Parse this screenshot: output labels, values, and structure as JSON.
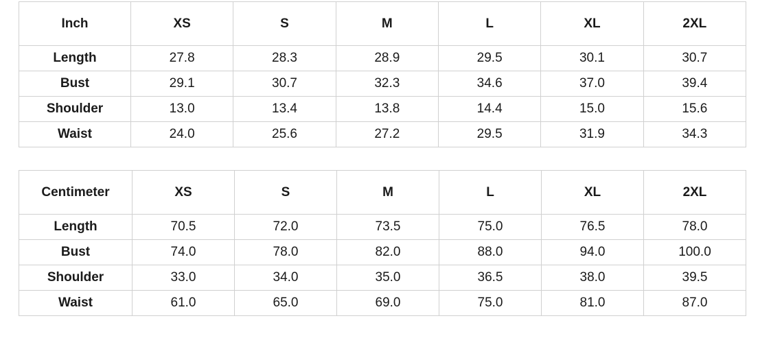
{
  "tables": [
    {
      "header": [
        "Inch",
        "XS",
        "S",
        "M",
        "L",
        "XL",
        "2XL"
      ],
      "rows": [
        [
          "Length",
          "27.8",
          "28.3",
          "28.9",
          "29.5",
          "30.1",
          "30.7"
        ],
        [
          "Bust",
          "29.1",
          "30.7",
          "32.3",
          "34.6",
          "37.0",
          "39.4"
        ],
        [
          "Shoulder",
          "13.0",
          "13.4",
          "13.8",
          "14.4",
          "15.0",
          "15.6"
        ],
        [
          "Waist",
          "24.0",
          "25.6",
          "27.2",
          "29.5",
          "31.9",
          "34.3"
        ]
      ]
    },
    {
      "header": [
        "Centimeter",
        "XS",
        "S",
        "M",
        "L",
        "XL",
        "2XL"
      ],
      "rows": [
        [
          "Length",
          "70.5",
          "72.0",
          "73.5",
          "75.0",
          "76.5",
          "78.0"
        ],
        [
          "Bust",
          "74.0",
          "78.0",
          "82.0",
          "88.0",
          "94.0",
          "100.0"
        ],
        [
          "Shoulder",
          "33.0",
          "34.0",
          "35.0",
          "36.5",
          "38.0",
          "39.5"
        ],
        [
          "Waist",
          "61.0",
          "65.0",
          "69.0",
          "75.0",
          "81.0",
          "87.0"
        ]
      ]
    }
  ]
}
